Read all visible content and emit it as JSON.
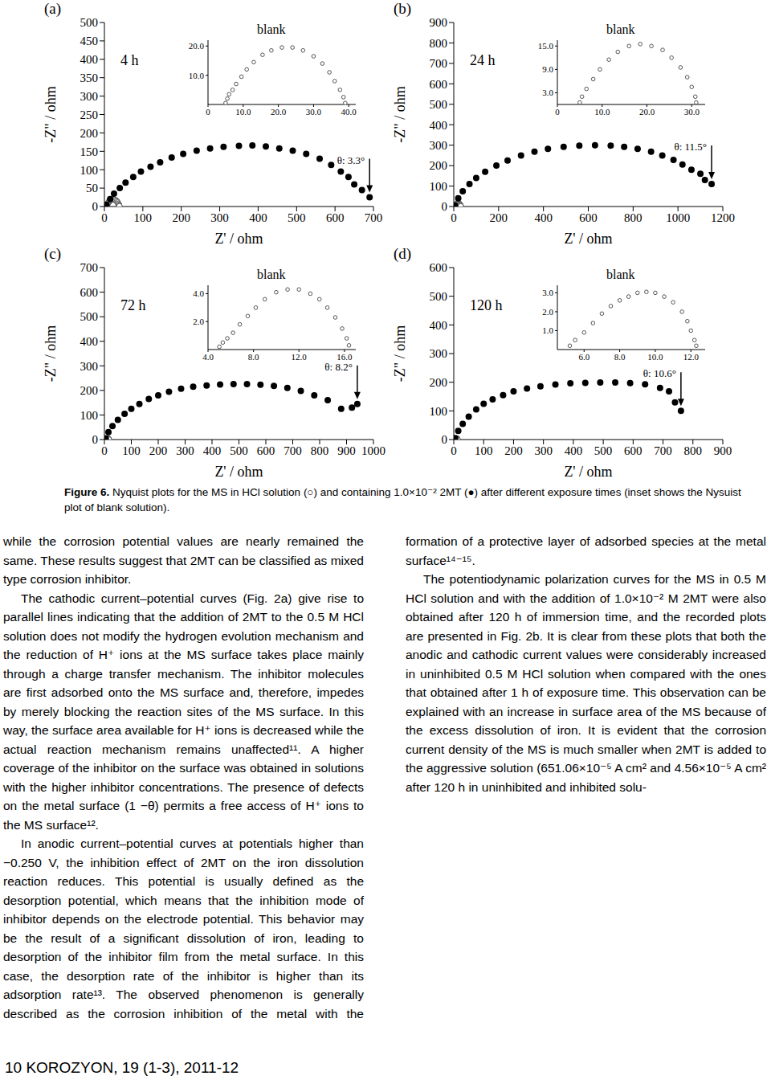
{
  "chart_data": [
    {
      "type": "scatter",
      "panel_label": "(a)",
      "time_label": "4 h",
      "x_label": "Z' / ohm",
      "y_label": "-Z\" / ohm",
      "xlim": [
        0,
        700
      ],
      "xticks": [
        0,
        100,
        200,
        300,
        400,
        500,
        600,
        700
      ],
      "ylim": [
        0,
        500
      ],
      "yticks": [
        0,
        50,
        100,
        150,
        200,
        250,
        300,
        350,
        400,
        450,
        500
      ],
      "annotation": "θ: 3.3°",
      "series": [
        {
          "marker": "open",
          "color": "#555555",
          "x": [
            5,
            5.5,
            6,
            7,
            8,
            9.5,
            11,
            13,
            15.5,
            18,
            21,
            24,
            27,
            30,
            32.5,
            34.5,
            36,
            37.5,
            38.5,
            39
          ],
          "y": [
            0.5,
            2,
            3.5,
            5,
            7,
            9.5,
            12,
            14.5,
            17,
            18.5,
            19.5,
            19.5,
            18.5,
            16.5,
            14,
            11,
            8,
            5,
            2.5,
            0.5
          ]
        },
        {
          "marker": "filled",
          "color": "#000000",
          "x": [
            5,
            15,
            25,
            40,
            55,
            75,
            95,
            120,
            145,
            175,
            205,
            240,
            275,
            310,
            350,
            385,
            420,
            455,
            490,
            525,
            560,
            590,
            615,
            635,
            650,
            670,
            690
          ],
          "y": [
            5,
            20,
            35,
            50,
            65,
            80,
            95,
            108,
            120,
            133,
            143,
            152,
            158,
            162,
            165,
            166,
            163,
            158,
            152,
            143,
            130,
            113,
            95,
            80,
            60,
            45,
            25
          ]
        }
      ],
      "inset": {
        "title": "blank",
        "xlim": [
          0,
          42
        ],
        "xticks": [
          0,
          {
            "value": 10,
            "label": "10.0"
          },
          {
            "value": 20,
            "label": "20.0"
          },
          {
            "value": 30,
            "label": "30.0"
          },
          {
            "value": 40,
            "label": "40.0"
          }
        ],
        "ylim": [
          0,
          22
        ],
        "yticks": [
          {
            "value": 10,
            "label": "10.0"
          },
          {
            "value": 20,
            "label": "20.0"
          }
        ]
      }
    },
    {
      "type": "scatter",
      "panel_label": "(b)",
      "time_label": "24 h",
      "x_label": "Z' / ohm",
      "y_label": "-Z\" / ohm",
      "xlim": [
        0,
        1200
      ],
      "xticks": [
        0,
        200,
        400,
        600,
        800,
        1000,
        1200
      ],
      "ylim": [
        0,
        900
      ],
      "yticks": [
        0,
        100,
        200,
        300,
        400,
        500,
        600,
        700,
        800,
        900
      ],
      "annotation": "θ: 11.5°",
      "series": [
        {
          "marker": "open",
          "color": "#555555",
          "x": [
            5,
            5.5,
            6.5,
            8,
            9.5,
            11.5,
            13.5,
            16,
            18.5,
            21,
            23.5,
            25.5,
            27.5,
            29,
            30,
            30.8,
            31
          ],
          "y": [
            0.5,
            2,
            4,
            6.5,
            9,
            11.5,
            13.5,
            15,
            15.5,
            15,
            14,
            12,
            9.5,
            7,
            4.5,
            2,
            0.5
          ]
        },
        {
          "marker": "filled",
          "color": "#000000",
          "x": [
            5,
            20,
            40,
            70,
            100,
            140,
            190,
            240,
            300,
            360,
            420,
            490,
            560,
            630,
            700,
            760,
            820,
            880,
            930,
            980,
            1020,
            1060,
            1100,
            1120,
            1150
          ],
          "y": [
            5,
            40,
            75,
            110,
            140,
            170,
            200,
            225,
            250,
            268,
            282,
            292,
            298,
            300,
            298,
            292,
            282,
            268,
            250,
            228,
            205,
            180,
            160,
            130,
            110
          ]
        }
      ],
      "inset": {
        "title": "blank",
        "xlim": [
          0,
          33
        ],
        "xticks": [
          0,
          {
            "value": 10,
            "label": "10.0"
          },
          {
            "value": 20,
            "label": "20.0"
          },
          {
            "value": 30,
            "label": "30.0"
          }
        ],
        "ylim": [
          0,
          16.5
        ],
        "yticks": [
          {
            "value": 3,
            "label": "3.0"
          },
          {
            "value": 9,
            "label": "9.0"
          },
          {
            "value": 15,
            "label": "15.0"
          }
        ]
      }
    },
    {
      "type": "scatter",
      "panel_label": "(c)",
      "time_label": "72 h",
      "x_label": "Z' / ohm",
      "y_label": "-Z\" / ohm",
      "xlim": [
        0,
        1000
      ],
      "xticks": [
        0,
        100,
        200,
        300,
        400,
        500,
        600,
        700,
        800,
        900,
        1000
      ],
      "ylim": [
        0,
        700
      ],
      "yticks": [
        0,
        100,
        200,
        300,
        400,
        500,
        600,
        700
      ],
      "annotation": "θ: 8.2°",
      "series": [
        {
          "marker": "open",
          "color": "#555555",
          "x": [
            5,
            5.3,
            5.7,
            6.2,
            6.8,
            7.5,
            8.2,
            9,
            10,
            11,
            12,
            13,
            13.8,
            14.5,
            15.2,
            15.8,
            16.2,
            16.4
          ],
          "y": [
            0.2,
            0.5,
            0.8,
            1.2,
            1.8,
            2.4,
            3,
            3.6,
            4.1,
            4.3,
            4.3,
            4,
            3.6,
            3,
            2.3,
            1.5,
            0.8,
            0.3
          ]
        },
        {
          "marker": "filled",
          "color": "#000000",
          "x": [
            5,
            15,
            30,
            50,
            75,
            100,
            130,
            165,
            200,
            240,
            285,
            330,
            380,
            430,
            480,
            530,
            580,
            630,
            680,
            730,
            780,
            830,
            880,
            920,
            940
          ],
          "y": [
            5,
            30,
            55,
            80,
            105,
            125,
            145,
            165,
            180,
            195,
            207,
            215,
            220,
            224,
            226,
            226,
            223,
            218,
            210,
            198,
            180,
            160,
            125,
            130,
            145
          ]
        }
      ],
      "inset": {
        "title": "blank",
        "xlim": [
          4,
          17
        ],
        "xticks": [
          {
            "value": 4,
            "label": "4.0"
          },
          {
            "value": 8,
            "label": "8.0"
          },
          {
            "value": 12,
            "label": "12.0"
          },
          {
            "value": 16,
            "label": "16.0"
          }
        ],
        "ylim": [
          0,
          4.6
        ],
        "yticks": [
          {
            "value": 2,
            "label": "2.0"
          },
          {
            "value": 4,
            "label": "4.0"
          }
        ]
      }
    },
    {
      "type": "scatter",
      "panel_label": "(d)",
      "time_label": "120 h",
      "x_label": "Z' / ohm",
      "y_label": "-Z\" / ohm",
      "xlim": [
        0,
        900
      ],
      "xticks": [
        0,
        100,
        200,
        300,
        400,
        500,
        600,
        700,
        800,
        900
      ],
      "ylim": [
        0,
        600
      ],
      "yticks": [
        0,
        100,
        200,
        300,
        400,
        500,
        600
      ],
      "annotation": "θ: 10.6°",
      "series": [
        {
          "marker": "open",
          "color": "#555555",
          "x": [
            5.2,
            5.5,
            6,
            6.5,
            7,
            7.5,
            8,
            8.5,
            9,
            9.5,
            10,
            10.5,
            11,
            11.5,
            11.8,
            12,
            12.2,
            12.3
          ],
          "y": [
            0.2,
            0.5,
            0.9,
            1.4,
            1.9,
            2.3,
            2.6,
            2.8,
            3,
            3.05,
            3,
            2.8,
            2.5,
            2,
            1.5,
            1,
            0.5,
            0.2
          ]
        },
        {
          "marker": "filled",
          "color": "#000000",
          "x": [
            5,
            15,
            30,
            50,
            75,
            100,
            130,
            165,
            200,
            245,
            290,
            340,
            390,
            440,
            490,
            540,
            590,
            640,
            690,
            720,
            740,
            760
          ],
          "y": [
            5,
            30,
            55,
            80,
            105,
            125,
            140,
            155,
            168,
            178,
            186,
            192,
            196,
            198,
            199,
            199,
            197,
            193,
            180,
            168,
            130,
            100
          ]
        }
      ],
      "inset": {
        "title": "blank",
        "xlim": [
          4.5,
          12.8
        ],
        "xticks": [
          {
            "value": 6,
            "label": "6.0"
          },
          {
            "value": 8,
            "label": "8.0"
          },
          {
            "value": 10,
            "label": "10.0"
          },
          {
            "value": 12,
            "label": "12.0"
          }
        ],
        "ylim": [
          0,
          3.4
        ],
        "yticks": [
          {
            "value": 1,
            "label": "1.0"
          },
          {
            "value": 2,
            "label": "2.0"
          },
          {
            "value": 3,
            "label": "3.0"
          }
        ]
      }
    }
  ],
  "caption": {
    "label": "Figure 6.",
    "text": "Nyquist plots for the MS in HCl solution (○) and containing 1.0×10⁻² 2MT (●) after different exposure times (inset shows the Nysuist plot of blank solution)."
  },
  "body": {
    "paragraphs": [
      "while the corrosion potential values are nearly remained the same. These results suggest that 2MT can be classified as mixed type corrosion inhibitor.",
      "The cathodic current–potential curves (Fig. 2a) give rise to parallel lines indicating that the addition of 2MT to the 0.5 M HCl solution does not modify the hydrogen evolution mechanism and the reduction of H⁺ ions at the MS surface takes place mainly through a charge transfer mechanism. The inhibitor molecules are first adsorbed onto the MS surface and, therefore, impedes by merely blocking the reaction sites of the MS surface. In this way, the surface area available for H⁺ ions is decreased while the actual reaction mechanism remains unaffected¹¹. A higher coverage of the inhibitor on the surface was obtained in solutions with the higher inhibitor concentrations. The presence of defects on the metal surface (1 −θ) permits a free access of H⁺ ions to the MS surface¹².",
      "In anodic current–potential curves at potentials higher than −0.250 V, the inhibition effect of 2MT on the iron dissolution reaction reduces. This potential is usually defined as the desorption potential, which means that the inhibition mode of inhibitor depends on the electrode potential. This behavior may be the result of a significant dissolution of iron, leading to desorption of the inhibitor film from the metal surface. In this case, the desorption rate of the inhibitor is higher than its adsorption rate¹³. The observed phenomenon is generally described as the corrosion inhibition of the metal with the formation of a protective layer of adsorbed species at the metal surface¹⁴⁻¹⁵.",
      "The potentiodynamic polarization curves for the MS in 0.5 M HCl solution and with the addition of 1.0×10⁻² M 2MT were also obtained after 120 h of immersion time, and the recorded plots are presented in Fig. 2b. It is clear from these plots that both the anodic and cathodic current values were considerably increased in uninhibited 0.5 M HCl solution when compared with the ones that obtained after 1 h of exposure time. This observation can be explained with an increase in surface area of the MS because of the excess dissolution of iron. It is evident that the corrosion current density of the MS is much smaller when 2MT is added to the aggressive solution (651.06×10⁻⁵ A cm² and 4.56×10⁻⁵ A cm² after 120 h in uninhibited and inhibited solu-"
    ]
  },
  "footer": "10 KOROZYON, 19 (1-3), 2011-12"
}
